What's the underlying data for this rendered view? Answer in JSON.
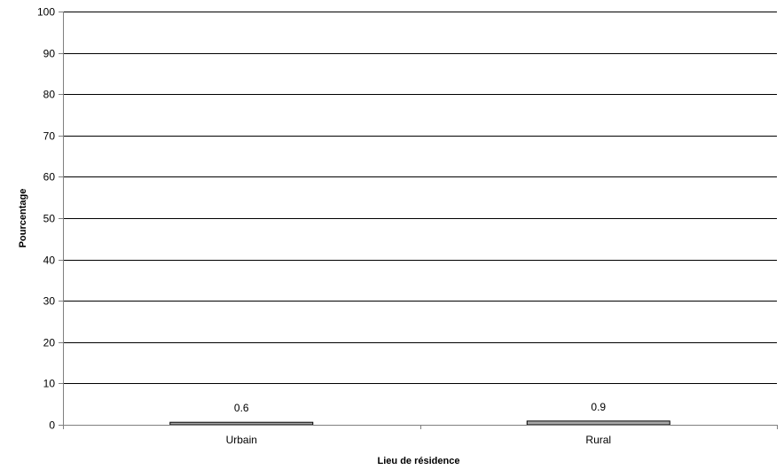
{
  "chart_data": {
    "type": "bar",
    "categories": [
      "Urbain",
      "Rural"
    ],
    "series": [
      {
        "values": [
          0.6,
          0.9
        ],
        "data_labels": [
          "0.6",
          "0.9"
        ]
      }
    ],
    "title": "",
    "xlabel": "Lieu de résidence",
    "ylabel": "Pourcentage",
    "ylim": [
      0,
      100
    ],
    "yticks": [
      0,
      10,
      20,
      30,
      40,
      50,
      60,
      70,
      80,
      90,
      100
    ],
    "ytick_labels": [
      "0",
      "10",
      "20",
      "30",
      "40",
      "50",
      "60",
      "70",
      "80",
      "90",
      "100"
    ],
    "grid": true,
    "legend": "none",
    "colors": {
      "bar_fill": "#a6a6a6",
      "bar_stroke": "#000000",
      "gridline": "#000000",
      "axis": "#808080"
    }
  }
}
